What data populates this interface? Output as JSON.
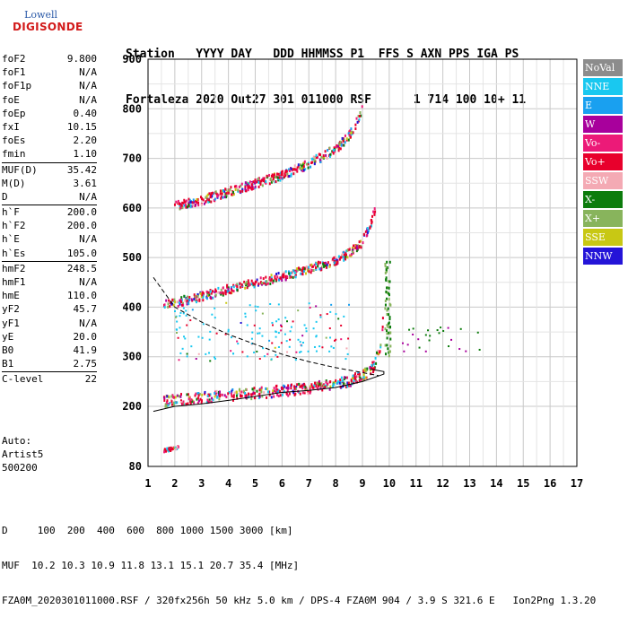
{
  "logo": {
    "line1": "Lowell",
    "line2": "DIGISONDE"
  },
  "header": {
    "line1": "Station   YYYY DAY   DDD HHMMSS P1  FFS S AXN PPS IGA PS",
    "line2": "Fortaleza 2020 Out27 301 011000 RSF      1 714 100 10+ 11"
  },
  "params": [
    {
      "label": "foF2",
      "value": "9.800"
    },
    {
      "label": "foF1",
      "value": "N/A"
    },
    {
      "label": "foF1p",
      "value": "N/A"
    },
    {
      "label": "foE",
      "value": "N/A"
    },
    {
      "label": "foEp",
      "value": "0.40"
    },
    {
      "label": "fxI",
      "value": "10.15"
    },
    {
      "label": "foEs",
      "value": "2.20"
    },
    {
      "label": "fmin",
      "value": "1.10"
    },
    {
      "sep": true
    },
    {
      "label": "MUF(D)",
      "value": "35.42"
    },
    {
      "label": "M(D)",
      "value": "3.61"
    },
    {
      "label": "D",
      "value": "N/A"
    },
    {
      "sep": true
    },
    {
      "label": "h`F",
      "value": "200.0"
    },
    {
      "label": "h`F2",
      "value": "200.0"
    },
    {
      "label": "h`E",
      "value": "N/A"
    },
    {
      "label": "h`Es",
      "value": "105.0"
    },
    {
      "sep": true
    },
    {
      "label": "hmF2",
      "value": "248.5"
    },
    {
      "label": "hmF1",
      "value": "N/A"
    },
    {
      "label": "hmE",
      "value": "110.0"
    },
    {
      "label": "yF2",
      "value": "45.7"
    },
    {
      "label": "yF1",
      "value": "N/A"
    },
    {
      "label": "yE",
      "value": "20.0"
    },
    {
      "label": "B0",
      "value": "41.9"
    },
    {
      "label": "B1",
      "value": "2.75"
    },
    {
      "sep": true
    },
    {
      "label": "C-level",
      "value": "22"
    }
  ],
  "auto": {
    "line1": "Auto:",
    "line2": "Artist5",
    "line3": "500200"
  },
  "legend": [
    {
      "label": "NoVal",
      "bg": "#8c8c8c",
      "fg": "#ffffff"
    },
    {
      "label": "NNE",
      "bg": "#19c8f0",
      "fg": "#ffffff"
    },
    {
      "label": "E",
      "bg": "#19a0f0",
      "fg": "#ffffff"
    },
    {
      "label": "W",
      "bg": "#a8009c",
      "fg": "#ffffff"
    },
    {
      "label": "Vo-",
      "bg": "#ec1a78",
      "fg": "#ffffff"
    },
    {
      "label": "Vo+",
      "bg": "#e8002c",
      "fg": "#ffffff"
    },
    {
      "label": "SSW",
      "bg": "#f4aab4",
      "fg": "#ffffff"
    },
    {
      "label": "X-",
      "bg": "#0c7c0c",
      "fg": "#ffffff"
    },
    {
      "label": "X+",
      "bg": "#88b45c",
      "fg": "#ffffff"
    },
    {
      "label": "SSE",
      "bg": "#c8c814",
      "fg": "#ffffff"
    },
    {
      "label": "NNW",
      "bg": "#2414d8",
      "fg": "#ffffff"
    }
  ],
  "bottom": {
    "line1": "D     100  200  400  600  800 1000 1500 3000 [km]",
    "line2": "MUF  10.2 10.3 10.9 11.8 13.1 15.1 20.7 35.4 [MHz]",
    "line3": "FZA0M_2020301011000.RSF / 320fx256h 50 kHz 5.0 km / DPS-4 FZA0M 904 / 3.9 S 321.6 E   Ion2Png 1.3.20"
  },
  "chart_data": {
    "type": "scatter",
    "xlim": [
      1,
      17
    ],
    "ylim": [
      80,
      900
    ],
    "xticks": [
      1,
      2,
      3,
      4,
      5,
      6,
      7,
      8,
      9,
      10,
      11,
      12,
      13,
      14,
      15,
      16,
      17
    ],
    "yticks": [
      80,
      200,
      300,
      400,
      500,
      600,
      700,
      800,
      900
    ],
    "grid": true,
    "traces": [
      {
        "name": "F2 trace (1st hop)",
        "x": [
          1.6,
          2,
          3,
          4,
          5,
          6,
          7,
          8,
          8.5,
          9,
          9.4,
          9.7,
          9.8
        ],
        "y": [
          205,
          208,
          213,
          218,
          222,
          227,
          232,
          240,
          246,
          258,
          275,
          320,
          400
        ]
      },
      {
        "name": "F2 trace (2nd hop)",
        "x": [
          1.6,
          2,
          3,
          4,
          5,
          6,
          7,
          8,
          8.5,
          9,
          9.3,
          9.5
        ],
        "y": [
          400,
          405,
          418,
          432,
          445,
          458,
          472,
          490,
          505,
          528,
          560,
          600
        ]
      },
      {
        "name": "F2 trace (3rd hop)",
        "x": [
          2,
          3,
          4,
          5,
          6,
          7,
          8,
          8.5,
          8.8,
          9
        ],
        "y": [
          600,
          612,
          628,
          645,
          662,
          685,
          715,
          740,
          770,
          800
        ]
      },
      {
        "name": "Es trace",
        "x": [
          1.6,
          1.8,
          2,
          2.2
        ],
        "y": [
          110,
          112,
          114,
          116
        ]
      },
      {
        "name": "X trace",
        "x": [
          9.8,
          9.9,
          10,
          10.05,
          10.1
        ],
        "y": [
          300,
          330,
          380,
          430,
          490
        ]
      }
    ],
    "curves": [
      {
        "name": "profile",
        "style": "solid",
        "x": [
          1.2,
          2,
          3,
          4,
          5,
          6,
          7,
          8,
          9,
          9.8,
          9.8,
          9.3
        ],
        "y": [
          190,
          200,
          205,
          212,
          220,
          228,
          232,
          238,
          250,
          265,
          270,
          275
        ]
      },
      {
        "name": "MUF",
        "style": "dashed",
        "x": [
          1.2,
          2,
          3,
          4,
          5,
          6,
          7,
          8,
          9,
          9.6
        ],
        "y": [
          460,
          400,
          370,
          345,
          325,
          305,
          290,
          278,
          268,
          262
        ]
      }
    ]
  }
}
